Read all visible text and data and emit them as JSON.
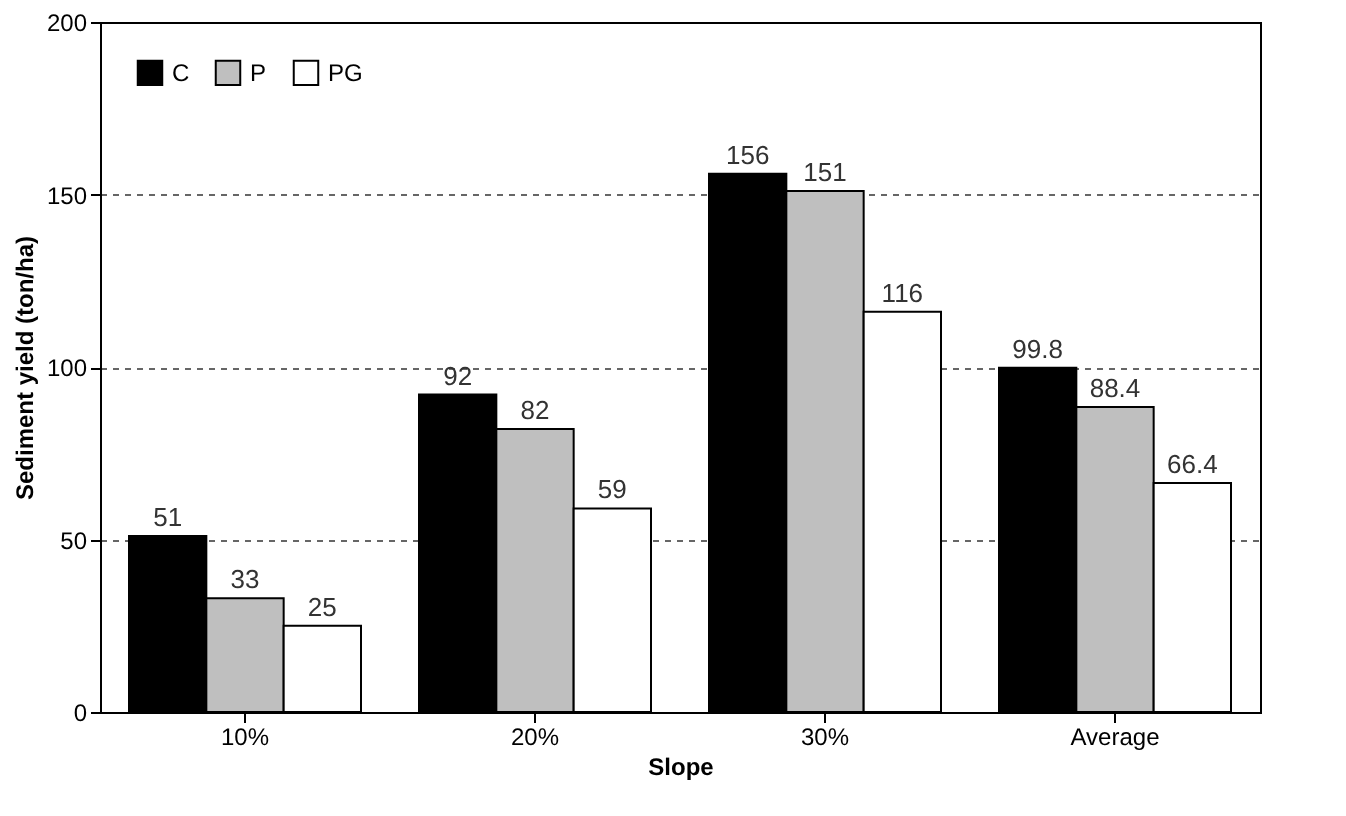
{
  "chart_data": {
    "type": "bar",
    "xlabel": "Slope",
    "ylabel": "Sediment yield (ton/ha)",
    "categories": [
      "10%",
      "20%",
      "30%",
      "Average"
    ],
    "series": [
      {
        "name": "C",
        "color": "#000000",
        "values": [
          51,
          92,
          156,
          99.8
        ]
      },
      {
        "name": "P",
        "color": "#bfbfbf",
        "values": [
          33,
          82,
          151,
          88.4
        ]
      },
      {
        "name": "PG",
        "color": "#ffffff",
        "values": [
          25,
          59,
          116,
          66.4
        ]
      }
    ],
    "ylim": [
      0,
      200
    ],
    "yticks": [
      0,
      50,
      100,
      150,
      200
    ],
    "grid": "y",
    "legend": "top left",
    "data_labels": true
  }
}
